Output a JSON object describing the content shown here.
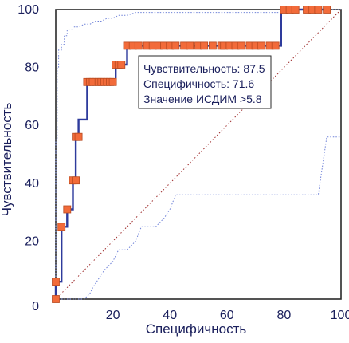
{
  "chart_data": {
    "type": "line",
    "title": "",
    "xlabel": "Специфичность",
    "ylabel": "Чувствительность",
    "xlim": [
      0,
      100
    ],
    "ylim": [
      0,
      100
    ],
    "xticks": [
      0,
      20,
      40,
      60,
      80,
      100
    ],
    "yticks": [
      0,
      20,
      40,
      60,
      80,
      100
    ],
    "x_tick_labels": [
      "0",
      "20",
      "40",
      "60",
      "80",
      "100"
    ],
    "y_tick_labels": [
      "0",
      "20",
      "40",
      "60",
      "80",
      "100"
    ],
    "grid": false,
    "series": [
      {
        "role": "roc-curve",
        "x": [
          0,
          0,
          2,
          2,
          4,
          4,
          6,
          6,
          7,
          7,
          8,
          8,
          11,
          11,
          13,
          14,
          15,
          16,
          17,
          18,
          19,
          20,
          21,
          21,
          23,
          24,
          25,
          25,
          27,
          29,
          32,
          34,
          36,
          38,
          40,
          42,
          45,
          47,
          50,
          52,
          55,
          58,
          59,
          61,
          63,
          65,
          68,
          70,
          72,
          75,
          77,
          79,
          79,
          80,
          81,
          82,
          84,
          88,
          90,
          92,
          95
        ],
        "y": [
          0,
          6,
          6,
          25,
          25,
          31,
          31,
          41,
          41,
          56,
          56,
          62,
          62,
          75,
          75,
          75,
          75,
          75,
          75,
          75,
          75,
          75,
          75,
          81,
          81,
          81,
          81,
          87.5,
          87.5,
          87.5,
          87.5,
          87.5,
          87.5,
          87.5,
          87.5,
          87.5,
          87.5,
          87.5,
          87.5,
          87.5,
          87.5,
          87.5,
          87.5,
          87.5,
          87.5,
          87.5,
          87.5,
          87.5,
          87.5,
          87.5,
          87.5,
          87.5,
          100,
          100,
          100,
          100,
          100,
          100,
          100,
          100,
          100
        ],
        "markers": [
          [
            0,
            0
          ],
          [
            0,
            6
          ],
          [
            2,
            25
          ],
          [
            4,
            31
          ],
          [
            6,
            41
          ],
          [
            7,
            41
          ],
          [
            7,
            56
          ],
          [
            8,
            56
          ],
          [
            11,
            75
          ],
          [
            12,
            75
          ],
          [
            13,
            75
          ],
          [
            14,
            75
          ],
          [
            15,
            75
          ],
          [
            16,
            75
          ],
          [
            17,
            75
          ],
          [
            18,
            75
          ],
          [
            19,
            75
          ],
          [
            20,
            75
          ],
          [
            21,
            81
          ],
          [
            22,
            81
          ],
          [
            23,
            81
          ],
          [
            25,
            87.5
          ],
          [
            27,
            87.5
          ],
          [
            29,
            87.5
          ],
          [
            32,
            87.5
          ],
          [
            34,
            87.5
          ],
          [
            36,
            87.5
          ],
          [
            38,
            87.5
          ],
          [
            40,
            87.5
          ],
          [
            42,
            87.5
          ],
          [
            45,
            87.5
          ],
          [
            47,
            87.5
          ],
          [
            50,
            87.5
          ],
          [
            52,
            87.5
          ],
          [
            55,
            87.5
          ],
          [
            58,
            87.5
          ],
          [
            59,
            87.5
          ],
          [
            61,
            87.5
          ],
          [
            63,
            87.5
          ],
          [
            65,
            87.5
          ],
          [
            68,
            87.5
          ],
          [
            70,
            87.5
          ],
          [
            72,
            87.5
          ],
          [
            75,
            87.5
          ],
          [
            77,
            87.5
          ],
          [
            80,
            100
          ],
          [
            82,
            100
          ],
          [
            84,
            100
          ],
          [
            88,
            100
          ],
          [
            90,
            100
          ],
          [
            92,
            100
          ],
          [
            95,
            100
          ]
        ]
      },
      {
        "role": "upper-confidence-bound",
        "x": [
          0,
          0,
          0.5,
          0.5,
          1,
          1,
          2,
          2,
          3,
          3,
          4,
          4,
          6,
          6,
          8,
          10,
          12,
          14,
          16,
          18,
          20,
          22,
          25,
          28,
          30,
          35,
          40,
          45,
          50,
          55,
          60,
          65,
          70,
          75,
          78,
          80,
          82,
          85,
          88,
          90,
          95,
          100
        ],
        "y": [
          0,
          55,
          55,
          80,
          80,
          86,
          86,
          88,
          88,
          91,
          91,
          93,
          93,
          94,
          94,
          95,
          95,
          96,
          96,
          97,
          97,
          98,
          98,
          99,
          99,
          99,
          99,
          99,
          99,
          99,
          99,
          99,
          99,
          99,
          99,
          99,
          100,
          100,
          100,
          100,
          100,
          100
        ]
      },
      {
        "role": "lower-confidence-bound",
        "x": [
          0,
          0,
          5,
          10,
          12,
          13,
          15,
          17,
          20,
          22,
          25,
          28,
          30,
          35,
          38,
          40,
          42,
          45,
          50,
          55,
          60,
          65,
          70,
          75,
          80,
          85,
          90,
          92,
          95,
          98,
          100
        ],
        "y": [
          0,
          0,
          0,
          0,
          2,
          4,
          7,
          10,
          13,
          17,
          17,
          20,
          25,
          25,
          28,
          31,
          36,
          36,
          36,
          36,
          36,
          36,
          36,
          36,
          36,
          36,
          36,
          36,
          56,
          56,
          56
        ]
      },
      {
        "role": "diagonal-reference",
        "x": [
          0,
          100
        ],
        "y": [
          0,
          100
        ]
      }
    ],
    "annotation": {
      "lines": [
        "Чувствительность: 87.5",
        "Специфичность: 71.6",
        "Значение ИСДИМ >5.8"
      ]
    },
    "colors": {
      "curve": "#2e3b9c",
      "marker_fill": "#f26b3a",
      "marker_stroke": "#b84a20",
      "ci": "#6f82d8",
      "diagonal": "#a03030",
      "text": "#1a1f5c",
      "frame": "#2a2a2a"
    }
  }
}
